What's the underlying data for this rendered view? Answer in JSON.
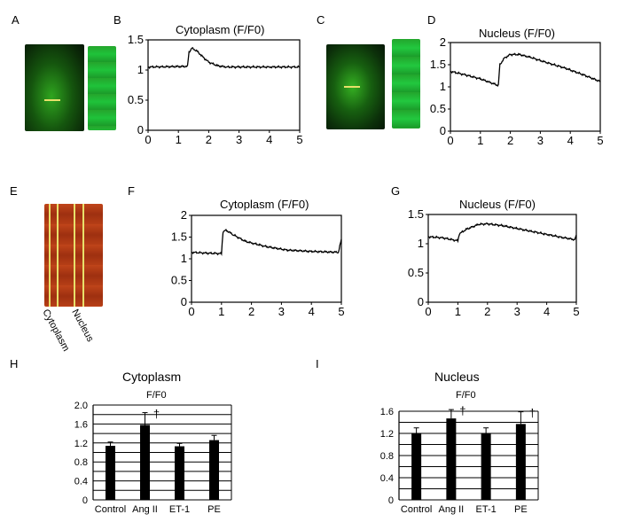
{
  "panel_letters": [
    "A",
    "B",
    "C",
    "D",
    "E",
    "F",
    "G",
    "H",
    "I"
  ],
  "kymograph_labels": [
    "Cytoplasm",
    "Nucleus"
  ],
  "colors": {
    "trace": "#000000",
    "fluo_green": "#1fb32a",
    "fluo_red": "#b83a10",
    "line_yellow": "#e8e06a"
  },
  "chart_data": [
    {
      "id": "B",
      "type": "line",
      "title": "Cytoplasm (F/F0)",
      "xlim": [
        0,
        5
      ],
      "ylim": [
        0,
        1.5
      ],
      "xticks": [
        "0",
        "1",
        "2",
        "3",
        "4",
        "5"
      ],
      "yticks": [
        "0",
        "0.5",
        "1",
        "1.5"
      ],
      "series": [
        {
          "x": [
            0,
            1.3,
            1.35,
            1.45,
            1.6,
            1.8,
            2.0,
            2.3,
            2.6,
            3.0,
            4.0,
            5.0
          ],
          "y": [
            1.05,
            1.06,
            1.3,
            1.36,
            1.32,
            1.22,
            1.13,
            1.07,
            1.05,
            1.05,
            1.05,
            1.05
          ]
        }
      ]
    },
    {
      "id": "D",
      "type": "line",
      "title": "Nucleus (F/F0)",
      "xlim": [
        0,
        5
      ],
      "ylim": [
        0,
        2
      ],
      "xticks": [
        "0",
        "1",
        "2",
        "3",
        "4",
        "5"
      ],
      "yticks": [
        "0",
        "0.5",
        "1",
        "1.5",
        "2"
      ],
      "series": [
        {
          "x": [
            0,
            0.5,
            1.0,
            1.6,
            1.65,
            1.8,
            2.0,
            2.3,
            2.7,
            3.2,
            3.8,
            4.4,
            5.0
          ],
          "y": [
            1.35,
            1.27,
            1.18,
            1.03,
            1.5,
            1.65,
            1.73,
            1.73,
            1.66,
            1.55,
            1.43,
            1.28,
            1.12
          ]
        }
      ]
    },
    {
      "id": "F",
      "type": "line",
      "title": "Cytoplasm (F/F0)",
      "xlim": [
        0,
        5
      ],
      "ylim": [
        0,
        2
      ],
      "xticks": [
        "0",
        "1",
        "2",
        "3",
        "4",
        "5"
      ],
      "yticks": [
        "0",
        "0.5",
        "1",
        "1.5",
        "2"
      ],
      "series": [
        {
          "x": [
            0,
            0.5,
            1.0,
            1.05,
            1.15,
            1.4,
            1.8,
            2.5,
            3.2,
            4.0,
            4.9,
            4.95,
            5.0
          ],
          "y": [
            1.15,
            1.13,
            1.12,
            1.62,
            1.66,
            1.55,
            1.4,
            1.28,
            1.2,
            1.17,
            1.15,
            1.3,
            1.45
          ]
        }
      ]
    },
    {
      "id": "G",
      "type": "line",
      "title": "Nucleus (F/F0)",
      "xlim": [
        0,
        5
      ],
      "ylim": [
        0,
        1.5
      ],
      "xticks": [
        "0",
        "1",
        "2",
        "3",
        "4",
        "5"
      ],
      "yticks": [
        "0",
        "0.5",
        "1",
        "1.5"
      ],
      "series": [
        {
          "x": [
            0,
            0.5,
            1.0,
            1.05,
            1.3,
            1.7,
            2.0,
            2.5,
            3.0,
            3.5,
            4.0,
            4.5,
            4.95,
            5.0
          ],
          "y": [
            1.12,
            1.1,
            1.05,
            1.17,
            1.25,
            1.33,
            1.34,
            1.31,
            1.26,
            1.21,
            1.16,
            1.11,
            1.07,
            1.15
          ]
        }
      ]
    },
    {
      "id": "H",
      "type": "bar",
      "title": "Cytoplasm",
      "subtitle": "F/F0",
      "ylim": [
        0,
        2.0
      ],
      "yticks": [
        "0",
        "0.4",
        "0.8",
        "1.2",
        "1.6",
        "2.0"
      ],
      "categories": [
        "Control",
        "Ang II",
        "ET-1",
        "PE"
      ],
      "values": [
        1.14,
        1.58,
        1.13,
        1.26
      ],
      "errors": [
        0.08,
        0.26,
        0.06,
        0.1
      ],
      "markers": [
        "",
        "†",
        "",
        ""
      ]
    },
    {
      "id": "I",
      "type": "bar",
      "title": "Nucleus",
      "subtitle": "F/F0",
      "ylim": [
        0,
        1.6
      ],
      "yticks": [
        "0",
        "0.4",
        "0.8",
        "1.2",
        "1.6"
      ],
      "categories": [
        "Control",
        "Ang II",
        "ET-1",
        "PE"
      ],
      "values": [
        1.2,
        1.47,
        1.2,
        1.37
      ],
      "errors": [
        0.1,
        0.16,
        0.1,
        0.22
      ],
      "markers": [
        "",
        "†",
        "",
        "†"
      ]
    }
  ]
}
